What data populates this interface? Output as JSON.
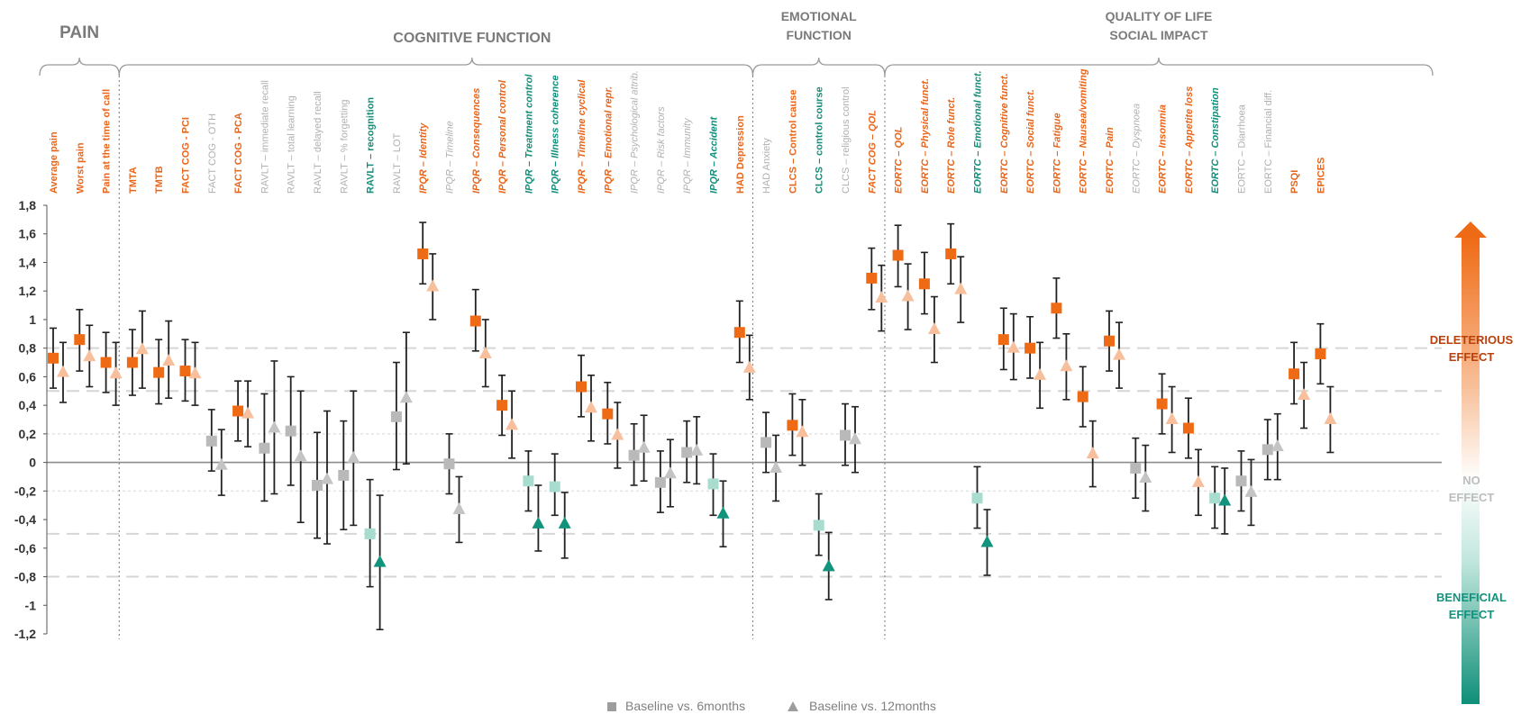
{
  "chart_data": {
    "type": "scatter",
    "title": "",
    "xlabel": "",
    "ylabel": "",
    "ylim": [
      -1.2,
      1.8
    ],
    "yticks": [
      "1,8",
      "1,6",
      "1,4",
      "1,2",
      "1",
      "0,8",
      "0,6",
      "0,4",
      "0,2",
      "0",
      "-0,2",
      "-0,4",
      "-0,6",
      "-0,8",
      "-1",
      "-1,2"
    ],
    "ytick_values": [
      1.8,
      1.6,
      1.4,
      1.2,
      1,
      0.8,
      0.6,
      0.4,
      0.2,
      0,
      -0.2,
      -0.4,
      -0.6,
      -0.8,
      -1,
      -1.2
    ],
    "reference_lines": [
      0.8,
      0.5,
      0.2,
      -0.2,
      -0.5,
      -0.8
    ],
    "groups": [
      {
        "name": "PAIN",
        "start": 0,
        "end": 2
      },
      {
        "name": "COGNITIVE FUNCTION",
        "start": 3,
        "end": 26
      },
      {
        "name": "EMOTIONAL\nFUNCTION",
        "start": 27,
        "end": 31
      },
      {
        "name": "QUALITY OF LIFE\nSOCIAL IMPACT",
        "start": 32,
        "end": 50
      }
    ],
    "legend": [
      {
        "marker": "square",
        "label": "Baseline vs. 6months"
      },
      {
        "marker": "triangle",
        "label": "Baseline vs. 12months"
      }
    ],
    "side_scale": {
      "top_label": "DELETERIOUS\nEFFECT",
      "mid_label": "NO\nEFFECT",
      "bottom_label": "BENEFICIAL\nEFFECT"
    },
    "category_colors": {
      "orange": "#ec6b1f",
      "teal": "#159580",
      "gray": "#b3b3b3"
    },
    "categories": [
      {
        "label": "Average pain",
        "color": "orange",
        "italic": false,
        "s": {
          "v": 0.73,
          "lo": 0.52,
          "hi": 0.94
        },
        "t": {
          "v": 0.63,
          "lo": 0.42,
          "hi": 0.84
        }
      },
      {
        "label": "Worst pain",
        "color": "orange",
        "italic": false,
        "s": {
          "v": 0.86,
          "lo": 0.64,
          "hi": 1.07
        },
        "t": {
          "v": 0.74,
          "lo": 0.53,
          "hi": 0.96
        }
      },
      {
        "label": "Pain at the time of call",
        "color": "orange",
        "italic": false,
        "s": {
          "v": 0.7,
          "lo": 0.49,
          "hi": 0.91
        },
        "t": {
          "v": 0.62,
          "lo": 0.4,
          "hi": 0.84
        }
      },
      {
        "label": "TMTA",
        "color": "orange",
        "italic": false,
        "s": {
          "v": 0.7,
          "lo": 0.47,
          "hi": 0.93
        },
        "t": {
          "v": 0.79,
          "lo": 0.52,
          "hi": 1.06
        }
      },
      {
        "label": "TMTB",
        "color": "orange",
        "italic": false,
        "s": {
          "v": 0.63,
          "lo": 0.41,
          "hi": 0.86
        },
        "t": {
          "v": 0.71,
          "lo": 0.45,
          "hi": 0.99
        }
      },
      {
        "label": "FACT COG - PCI",
        "color": "orange",
        "italic": false,
        "s": {
          "v": 0.64,
          "lo": 0.43,
          "hi": 0.86
        },
        "t": {
          "v": 0.62,
          "lo": 0.4,
          "hi": 0.84
        }
      },
      {
        "label": "FACT COG - OTH",
        "color": "gray",
        "italic": false,
        "s": {
          "v": 0.15,
          "lo": -0.06,
          "hi": 0.37
        },
        "t": {
          "v": -0.02,
          "lo": -0.23,
          "hi": 0.23
        }
      },
      {
        "label": "FACT COG - PCA",
        "color": "orange",
        "italic": false,
        "s": {
          "v": 0.36,
          "lo": 0.15,
          "hi": 0.57
        },
        "t": {
          "v": 0.34,
          "lo": 0.11,
          "hi": 0.57
        }
      },
      {
        "label": "RAVLT – immediate recall",
        "color": "gray",
        "italic": false,
        "s": {
          "v": 0.1,
          "lo": -0.27,
          "hi": 0.48
        },
        "t": {
          "v": 0.24,
          "lo": -0.22,
          "hi": 0.71
        }
      },
      {
        "label": "RAVLT – total learning",
        "color": "gray",
        "italic": false,
        "s": {
          "v": 0.22,
          "lo": -0.16,
          "hi": 0.6
        },
        "t": {
          "v": 0.04,
          "lo": -0.42,
          "hi": 0.5
        }
      },
      {
        "label": "RAVLT – delayed recall",
        "color": "gray",
        "italic": false,
        "s": {
          "v": -0.16,
          "lo": -0.53,
          "hi": 0.21
        },
        "t": {
          "v": -0.12,
          "lo": -0.57,
          "hi": 0.36
        }
      },
      {
        "label": "RAVLT – % forgetting",
        "color": "gray",
        "italic": false,
        "s": {
          "v": -0.09,
          "lo": -0.47,
          "hi": 0.29
        },
        "t": {
          "v": 0.03,
          "lo": -0.44,
          "hi": 0.5
        }
      },
      {
        "label": "RAVLT – recognition",
        "color": "teal",
        "italic": false,
        "s": {
          "v": -0.5,
          "lo": -0.87,
          "hi": -0.12
        },
        "t": {
          "v": -0.7,
          "lo": -1.17,
          "hi": -0.23
        }
      },
      {
        "label": "RAVLT – LOT",
        "color": "gray",
        "italic": false,
        "s": {
          "v": 0.32,
          "lo": -0.05,
          "hi": 0.7
        },
        "t": {
          "v": 0.45,
          "lo": -0.01,
          "hi": 0.91
        }
      },
      {
        "label": "IPQR – Identity",
        "color": "orange",
        "italic": true,
        "s": {
          "v": 1.46,
          "lo": 1.25,
          "hi": 1.68
        },
        "t": {
          "v": 1.23,
          "lo": 1.0,
          "hi": 1.46
        }
      },
      {
        "label": "IPQR – Timeline",
        "color": "gray",
        "italic": true,
        "s": {
          "v": -0.01,
          "lo": -0.22,
          "hi": 0.2
        },
        "t": {
          "v": -0.33,
          "lo": -0.56,
          "hi": -0.1
        }
      },
      {
        "label": "IPQR – Consequences",
        "color": "orange",
        "italic": true,
        "s": {
          "v": 0.99,
          "lo": 0.78,
          "hi": 1.21
        },
        "t": {
          "v": 0.76,
          "lo": 0.53,
          "hi": 1.0
        }
      },
      {
        "label": "IPQR – Personal control",
        "color": "orange",
        "italic": true,
        "s": {
          "v": 0.4,
          "lo": 0.19,
          "hi": 0.61
        },
        "t": {
          "v": 0.26,
          "lo": 0.03,
          "hi": 0.5
        }
      },
      {
        "label": "IPQR – Treatment control",
        "color": "teal",
        "italic": true,
        "s": {
          "v": -0.13,
          "lo": -0.34,
          "hi": 0.08
        },
        "t": {
          "v": -0.43,
          "lo": -0.62,
          "hi": -0.16
        }
      },
      {
        "label": "IPQR – Illness coherence",
        "color": "teal",
        "italic": true,
        "s": {
          "v": -0.17,
          "lo": -0.37,
          "hi": 0.06
        },
        "t": {
          "v": -0.43,
          "lo": -0.67,
          "hi": -0.21
        }
      },
      {
        "label": "IPQR – Timeline cyclical",
        "color": "orange",
        "italic": true,
        "s": {
          "v": 0.53,
          "lo": 0.32,
          "hi": 0.75
        },
        "t": {
          "v": 0.38,
          "lo": 0.15,
          "hi": 0.61
        }
      },
      {
        "label": "IPQR – Emotional repr.",
        "color": "orange",
        "italic": true,
        "s": {
          "v": 0.34,
          "lo": 0.13,
          "hi": 0.56
        },
        "t": {
          "v": 0.19,
          "lo": -0.04,
          "hi": 0.42
        }
      },
      {
        "label": "IPQR – Psychological attrib.",
        "color": "gray",
        "italic": true,
        "s": {
          "v": 0.05,
          "lo": -0.16,
          "hi": 0.27
        },
        "t": {
          "v": 0.1,
          "lo": -0.13,
          "hi": 0.33
        }
      },
      {
        "label": "IPQR – Risk factors",
        "color": "gray",
        "italic": true,
        "s": {
          "v": -0.14,
          "lo": -0.35,
          "hi": 0.08
        },
        "t": {
          "v": -0.08,
          "lo": -0.31,
          "hi": 0.16
        }
      },
      {
        "label": "IPQR – Immunity",
        "color": "gray",
        "italic": true,
        "s": {
          "v": 0.07,
          "lo": -0.14,
          "hi": 0.29
        },
        "t": {
          "v": 0.08,
          "lo": -0.15,
          "hi": 0.32
        }
      },
      {
        "label": "IPQR – Accident",
        "color": "teal",
        "italic": true,
        "s": {
          "v": -0.15,
          "lo": -0.37,
          "hi": 0.06
        },
        "t": {
          "v": -0.36,
          "lo": -0.59,
          "hi": -0.13
        }
      },
      {
        "label": "HAD Depression",
        "color": "orange",
        "italic": false,
        "s": {
          "v": 0.91,
          "lo": 0.7,
          "hi": 1.13
        },
        "t": {
          "v": 0.66,
          "lo": 0.44,
          "hi": 0.89
        }
      },
      {
        "label": "HAD Anxiety",
        "color": "gray",
        "italic": false,
        "s": {
          "v": 0.14,
          "lo": -0.07,
          "hi": 0.35
        },
        "t": {
          "v": -0.04,
          "lo": -0.27,
          "hi": 0.19
        }
      },
      {
        "label": "CLCS – Control  cause",
        "color": "orange",
        "italic": false,
        "s": {
          "v": 0.26,
          "lo": 0.05,
          "hi": 0.48
        },
        "t": {
          "v": 0.21,
          "lo": -0.02,
          "hi": 0.44
        }
      },
      {
        "label": "CLCS – control course",
        "color": "teal",
        "italic": false,
        "s": {
          "v": -0.44,
          "lo": -0.65,
          "hi": -0.22
        },
        "t": {
          "v": -0.73,
          "lo": -0.96,
          "hi": -0.49
        }
      },
      {
        "label": "CLCS – religious control",
        "color": "gray",
        "italic": false,
        "s": {
          "v": 0.19,
          "lo": -0.02,
          "hi": 0.41
        },
        "t": {
          "v": 0.16,
          "lo": -0.07,
          "hi": 0.39
        }
      },
      {
        "label": "FACT COG – QOL",
        "color": "orange",
        "italic": true,
        "s": {
          "v": 1.29,
          "lo": 1.07,
          "hi": 1.5
        },
        "t": {
          "v": 1.15,
          "lo": 0.92,
          "hi": 1.38
        }
      },
      {
        "label": "EORTC – QOL",
        "color": "orange",
        "italic": true,
        "s": {
          "v": 1.45,
          "lo": 1.23,
          "hi": 1.66
        },
        "t": {
          "v": 1.16,
          "lo": 0.93,
          "hi": 1.39
        }
      },
      {
        "label": "EORTC – Physical funct.",
        "color": "orange",
        "italic": true,
        "s": {
          "v": 1.25,
          "lo": 1.04,
          "hi": 1.47
        },
        "t": {
          "v": 0.93,
          "lo": 0.7,
          "hi": 1.16
        }
      },
      {
        "label": "EORTC – Role funct.",
        "color": "orange",
        "italic": true,
        "s": {
          "v": 1.46,
          "lo": 1.25,
          "hi": 1.67
        },
        "t": {
          "v": 1.21,
          "lo": 0.98,
          "hi": 1.44
        }
      },
      {
        "label": "EORTC – Emotional funct.",
        "color": "teal",
        "italic": true,
        "s": {
          "v": -0.25,
          "lo": -0.46,
          "hi": -0.03
        },
        "t": {
          "v": -0.56,
          "lo": -0.79,
          "hi": -0.33
        }
      },
      {
        "label": "EORTC – Cognitive funct.",
        "color": "orange",
        "italic": true,
        "s": {
          "v": 0.86,
          "lo": 0.65,
          "hi": 1.08
        },
        "t": {
          "v": 0.8,
          "lo": 0.58,
          "hi": 1.04
        }
      },
      {
        "label": "EORTC – Social funct.",
        "color": "orange",
        "italic": true,
        "s": {
          "v": 0.8,
          "lo": 0.59,
          "hi": 1.02
        },
        "t": {
          "v": 0.61,
          "lo": 0.38,
          "hi": 0.84
        }
      },
      {
        "label": "EORTC – Fatigue",
        "color": "orange",
        "italic": true,
        "s": {
          "v": 1.08,
          "lo": 0.87,
          "hi": 1.29
        },
        "t": {
          "v": 0.67,
          "lo": 0.44,
          "hi": 0.9
        }
      },
      {
        "label": "EORTC – Nausea/vomiting",
        "color": "orange",
        "italic": true,
        "s": {
          "v": 0.46,
          "lo": 0.25,
          "hi": 0.67
        },
        "t": {
          "v": 0.06,
          "lo": -0.17,
          "hi": 0.29
        }
      },
      {
        "label": "EORTC – Pain",
        "color": "orange",
        "italic": true,
        "s": {
          "v": 0.85,
          "lo": 0.64,
          "hi": 1.06
        },
        "t": {
          "v": 0.75,
          "lo": 0.52,
          "hi": 0.98
        }
      },
      {
        "label": "EORTC – Dyspnoea",
        "color": "gray",
        "italic": true,
        "s": {
          "v": -0.04,
          "lo": -0.25,
          "hi": 0.17
        },
        "t": {
          "v": -0.11,
          "lo": -0.34,
          "hi": 0.12
        }
      },
      {
        "label": "EORTC – Insomnia",
        "color": "orange",
        "italic": true,
        "s": {
          "v": 0.41,
          "lo": 0.2,
          "hi": 0.62
        },
        "t": {
          "v": 0.3,
          "lo": 0.07,
          "hi": 0.53
        }
      },
      {
        "label": "EORTC – Appetite loss",
        "color": "orange",
        "italic": true,
        "s": {
          "v": 0.24,
          "lo": 0.03,
          "hi": 0.45
        },
        "t": {
          "v": -0.14,
          "lo": -0.37,
          "hi": 0.09
        }
      },
      {
        "label": "EORTC – Constipation",
        "color": "teal",
        "italic": true,
        "s": {
          "v": -0.25,
          "lo": -0.46,
          "hi": -0.03
        },
        "t": {
          "v": -0.27,
          "lo": -0.5,
          "hi": -0.04
        }
      },
      {
        "label": "EORTC – Diarrhoea",
        "color": "gray",
        "italic": false,
        "s": {
          "v": -0.13,
          "lo": -0.34,
          "hi": 0.08
        },
        "t": {
          "v": -0.21,
          "lo": -0.44,
          "hi": 0.02
        }
      },
      {
        "label": "EORTC – Financial diff.",
        "color": "gray",
        "italic": false,
        "s": {
          "v": 0.09,
          "lo": -0.12,
          "hi": 0.3
        },
        "t": {
          "v": 0.11,
          "lo": -0.12,
          "hi": 0.34
        }
      },
      {
        "label": "PSQI",
        "color": "orange",
        "italic": false,
        "s": {
          "v": 0.62,
          "lo": 0.41,
          "hi": 0.84
        },
        "t": {
          "v": 0.47,
          "lo": 0.24,
          "hi": 0.7
        }
      },
      {
        "label": "EPICES",
        "color": "orange",
        "italic": false,
        "s": {
          "v": 0.76,
          "lo": 0.55,
          "hi": 0.97
        },
        "t": {
          "v": 0.3,
          "lo": 0.07,
          "hi": 0.53
        }
      }
    ]
  }
}
